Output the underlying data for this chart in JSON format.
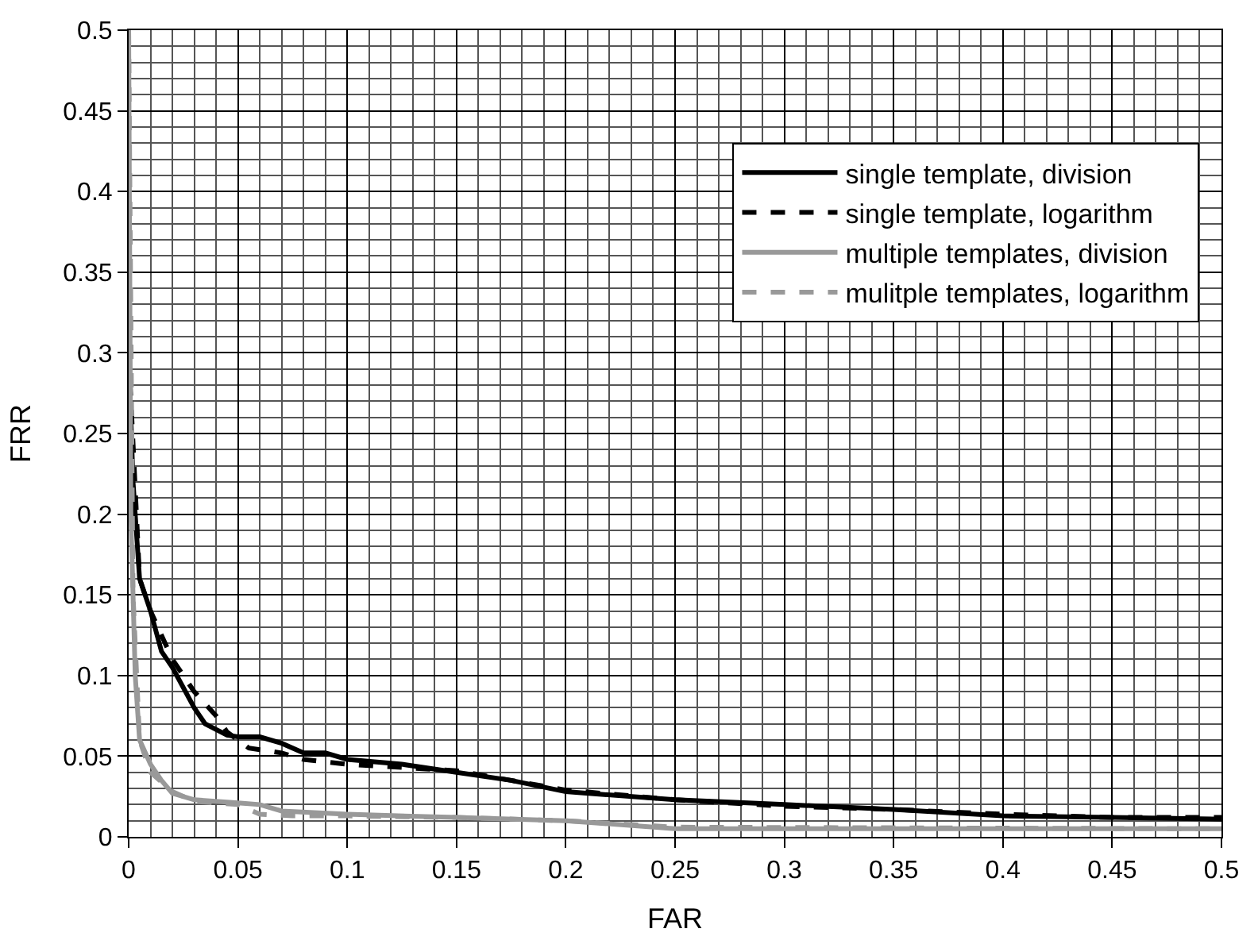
{
  "chart_data": {
    "type": "line",
    "xlabel": "FAR",
    "ylabel": "FRR",
    "xlim": [
      0,
      0.5
    ],
    "ylim": [
      0,
      0.5
    ],
    "xticks": [
      0,
      0.05,
      0.1,
      0.15,
      0.2,
      0.25,
      0.3,
      0.35,
      0.4,
      0.45,
      0.5
    ],
    "yticks": [
      0,
      0.05,
      0.1,
      0.15,
      0.2,
      0.25,
      0.3,
      0.35,
      0.4,
      0.45,
      0.5
    ],
    "grid": true,
    "legend": "top right",
    "marker": "none",
    "series": [
      {
        "name": "single template, division",
        "color": "#000000",
        "line_style": "solid",
        "x": [
          0,
          0.002,
          0.005,
          0.01,
          0.015,
          0.02,
          0.03,
          0.035,
          0.045,
          0.05,
          0.06,
          0.07,
          0.08,
          0.09,
          0.1,
          0.125,
          0.15,
          0.175,
          0.2,
          0.25,
          0.3,
          0.35,
          0.4,
          0.45,
          0.5
        ],
        "values": [
          0.3,
          0.22,
          0.16,
          0.14,
          0.115,
          0.105,
          0.08,
          0.07,
          0.063,
          0.062,
          0.062,
          0.058,
          0.052,
          0.052,
          0.048,
          0.045,
          0.04,
          0.035,
          0.028,
          0.023,
          0.02,
          0.017,
          0.013,
          0.012,
          0.011
        ]
      },
      {
        "name": "single template, logarithm",
        "color": "#000000",
        "line_style": "dashed",
        "x": [
          0,
          0.005,
          0.01,
          0.02,
          0.03,
          0.04,
          0.045,
          0.055,
          0.06,
          0.07,
          0.08,
          0.1,
          0.125,
          0.15,
          0.175,
          0.2,
          0.25,
          0.3,
          0.35,
          0.4,
          0.45,
          0.5
        ],
        "values": [
          0.3,
          0.16,
          0.14,
          0.11,
          0.09,
          0.075,
          0.065,
          0.055,
          0.054,
          0.052,
          0.048,
          0.045,
          0.043,
          0.041,
          0.035,
          0.029,
          0.023,
          0.019,
          0.017,
          0.014,
          0.012,
          0.012
        ]
      },
      {
        "name": "multiple templates, division",
        "color": "#999999",
        "line_style": "solid",
        "x": [
          0,
          0.001,
          0.003,
          0.005,
          0.01,
          0.015,
          0.02,
          0.03,
          0.05,
          0.06,
          0.07,
          0.1,
          0.15,
          0.2,
          0.25,
          0.3,
          0.5
        ],
        "values": [
          0.5,
          0.2,
          0.1,
          0.06,
          0.045,
          0.035,
          0.027,
          0.023,
          0.021,
          0.02,
          0.016,
          0.014,
          0.012,
          0.01,
          0.005,
          0.005,
          0.005
        ]
      },
      {
        "name": "mulitple templates, logarithm",
        "color": "#999999",
        "line_style": "dashed",
        "x": [
          0,
          0.002,
          0.005,
          0.01,
          0.02,
          0.03,
          0.05,
          0.06,
          0.075,
          0.1,
          0.15,
          0.2,
          0.25,
          0.5
        ],
        "values": [
          0.5,
          0.15,
          0.06,
          0.04,
          0.028,
          0.022,
          0.02,
          0.014,
          0.013,
          0.013,
          0.012,
          0.01,
          0.006,
          0.005
        ]
      }
    ]
  }
}
